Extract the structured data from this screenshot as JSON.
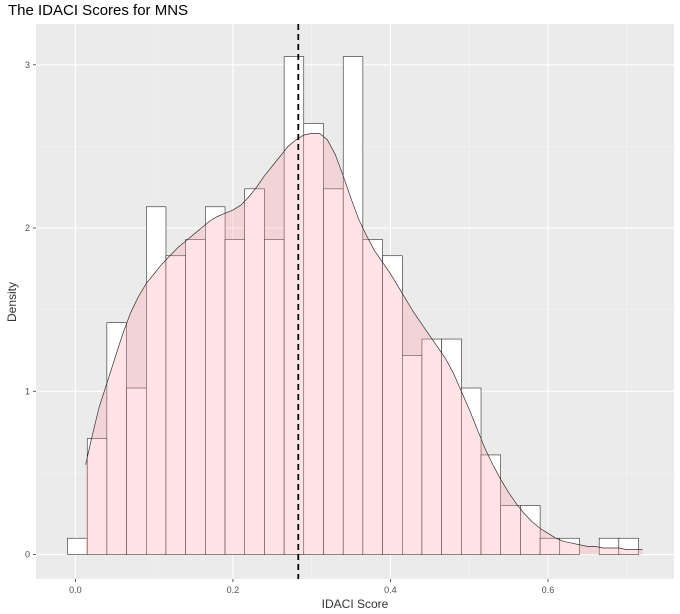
{
  "chart_data": {
    "type": "histogram",
    "title": "The IDACI Scores for MNS",
    "xlabel": "IDACI Score",
    "ylabel": "Density",
    "xlim": [
      -0.05,
      0.76
    ],
    "ylim": [
      -0.15,
      3.25
    ],
    "x_ticks": [
      {
        "value": 0.0,
        "label": "0.0"
      },
      {
        "value": 0.2,
        "label": "0.2"
      },
      {
        "value": 0.4,
        "label": "0.4"
      },
      {
        "value": 0.6,
        "label": "0.6"
      }
    ],
    "y_ticks": [
      {
        "value": 0,
        "label": "0"
      },
      {
        "value": 1,
        "label": "1"
      },
      {
        "value": 2,
        "label": "2"
      },
      {
        "value": 3,
        "label": "3"
      }
    ],
    "bin_width": 0.025,
    "bins": [
      {
        "start": -0.01,
        "density": 0.1
      },
      {
        "start": 0.015,
        "density": 0.71
      },
      {
        "start": 0.04,
        "density": 1.42
      },
      {
        "start": 0.065,
        "density": 1.02
      },
      {
        "start": 0.09,
        "density": 2.13
      },
      {
        "start": 0.115,
        "density": 1.83
      },
      {
        "start": 0.14,
        "density": 1.93
      },
      {
        "start": 0.165,
        "density": 2.13
      },
      {
        "start": 0.19,
        "density": 1.93
      },
      {
        "start": 0.215,
        "density": 2.24
      },
      {
        "start": 0.24,
        "density": 1.93
      },
      {
        "start": 0.265,
        "density": 3.05
      },
      {
        "start": 0.29,
        "density": 2.64
      },
      {
        "start": 0.315,
        "density": 2.24
      },
      {
        "start": 0.34,
        "density": 3.05
      },
      {
        "start": 0.365,
        "density": 1.93
      },
      {
        "start": 0.39,
        "density": 1.83
      },
      {
        "start": 0.415,
        "density": 1.22
      },
      {
        "start": 0.44,
        "density": 1.32
      },
      {
        "start": 0.465,
        "density": 1.32
      },
      {
        "start": 0.49,
        "density": 1.02
      },
      {
        "start": 0.515,
        "density": 0.61
      },
      {
        "start": 0.54,
        "density": 0.3
      },
      {
        "start": 0.565,
        "density": 0.3
      },
      {
        "start": 0.59,
        "density": 0.1
      },
      {
        "start": 0.615,
        "density": 0.1
      },
      {
        "start": 0.64,
        "density": 0.0
      },
      {
        "start": 0.665,
        "density": 0.1
      },
      {
        "start": 0.69,
        "density": 0.1
      }
    ],
    "density_curve": {
      "x": [
        0.013,
        0.02,
        0.03,
        0.04,
        0.05,
        0.06,
        0.07,
        0.08,
        0.09,
        0.1,
        0.11,
        0.12,
        0.13,
        0.14,
        0.15,
        0.16,
        0.17,
        0.18,
        0.19,
        0.2,
        0.21,
        0.22,
        0.23,
        0.24,
        0.25,
        0.26,
        0.27,
        0.28,
        0.29,
        0.3,
        0.31,
        0.32,
        0.33,
        0.34,
        0.35,
        0.36,
        0.37,
        0.38,
        0.39,
        0.4,
        0.41,
        0.42,
        0.43,
        0.44,
        0.45,
        0.46,
        0.47,
        0.48,
        0.49,
        0.5,
        0.51,
        0.52,
        0.53,
        0.54,
        0.55,
        0.56,
        0.57,
        0.58,
        0.59,
        0.6,
        0.61,
        0.62,
        0.63,
        0.64,
        0.65,
        0.66,
        0.67,
        0.68,
        0.69,
        0.7,
        0.71,
        0.72
      ],
      "y": [
        0.55,
        0.7,
        0.9,
        1.05,
        1.2,
        1.35,
        1.48,
        1.58,
        1.66,
        1.72,
        1.78,
        1.83,
        1.88,
        1.92,
        1.96,
        2.0,
        2.04,
        2.07,
        2.09,
        2.11,
        2.14,
        2.19,
        2.25,
        2.32,
        2.38,
        2.44,
        2.5,
        2.54,
        2.57,
        2.58,
        2.58,
        2.54,
        2.45,
        2.32,
        2.18,
        2.05,
        1.95,
        1.86,
        1.79,
        1.72,
        1.64,
        1.56,
        1.48,
        1.41,
        1.34,
        1.27,
        1.2,
        1.11,
        1.0,
        0.89,
        0.77,
        0.65,
        0.55,
        0.46,
        0.38,
        0.31,
        0.25,
        0.2,
        0.16,
        0.13,
        0.1,
        0.08,
        0.07,
        0.06,
        0.05,
        0.05,
        0.04,
        0.04,
        0.04,
        0.03,
        0.03,
        0.03
      ]
    },
    "mean_line_x": 0.283,
    "grid": true,
    "colors": {
      "panel_background": "#ebebeb",
      "grid_major": "#ffffff",
      "grid_minor": "#f4f4f4",
      "bar_fill": "#ffffff",
      "bar_outline": "#000000",
      "density_fill": "#ff9aa5",
      "density_fill_opacity": 0.28,
      "density_line": "#333333",
      "mean_line": "#000000"
    }
  }
}
